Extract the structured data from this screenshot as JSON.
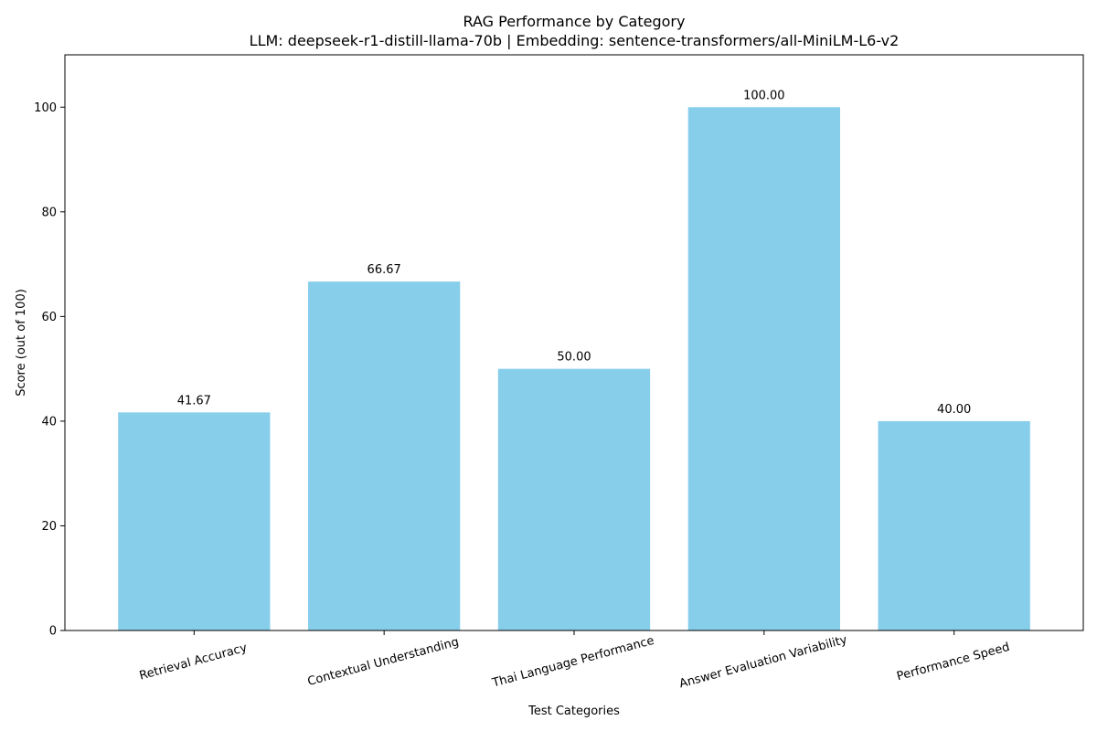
{
  "chart_data": {
    "type": "bar",
    "title": "RAG Performance by Category",
    "subtitle": "LLM: deepseek-r1-distill-llama-70b | Embedding: sentence-transformers/all-MiniLM-L6-v2",
    "xlabel": "Test Categories",
    "ylabel": "Score (out of 100)",
    "categories": [
      "Retrieval Accuracy",
      "Contextual Understanding",
      "Thai Language Performance",
      "Answer Evaluation Variability",
      "Performance Speed"
    ],
    "values": [
      41.67,
      66.67,
      50.0,
      100.0,
      40.0
    ],
    "value_labels": [
      "41.67",
      "66.67",
      "50.00",
      "100.00",
      "40.00"
    ],
    "ylim": [
      0,
      110
    ],
    "yticks": [
      0,
      20,
      40,
      60,
      80,
      100
    ],
    "grid": false,
    "bar_color": "#87CEEB"
  }
}
